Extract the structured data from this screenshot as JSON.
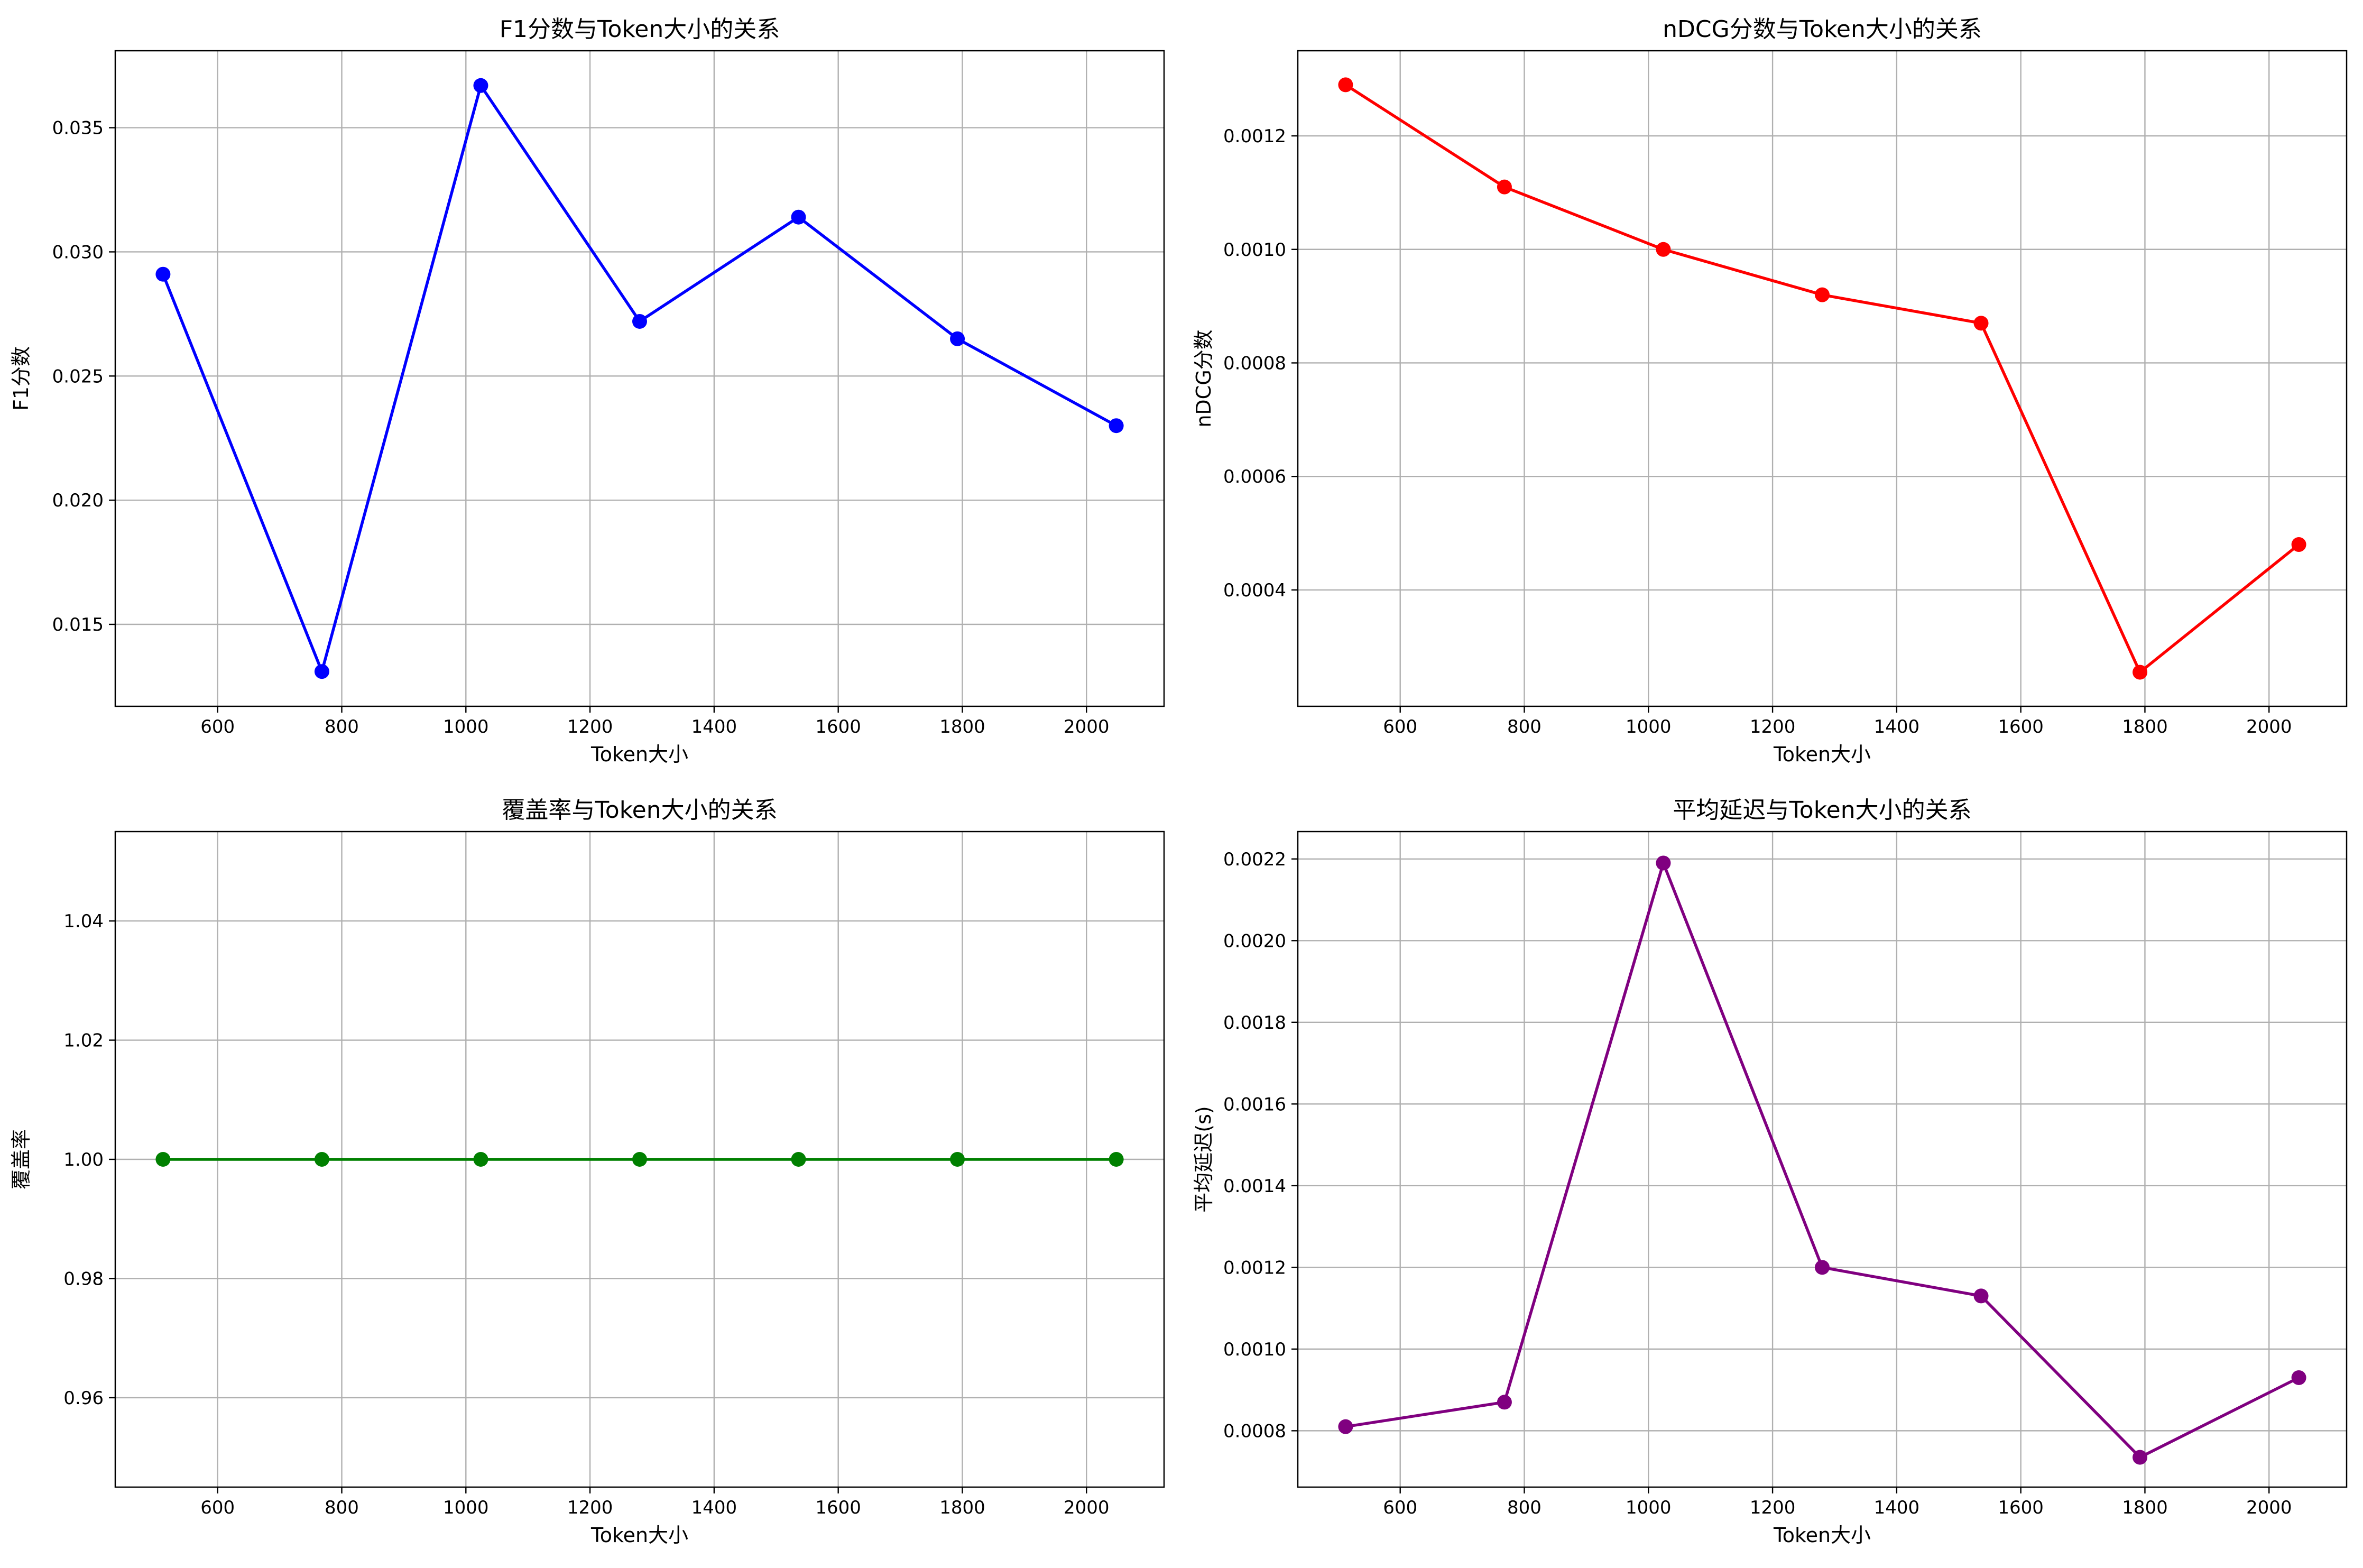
{
  "chart_data": [
    {
      "type": "line",
      "title": "F1分数与Token大小的关系",
      "xlabel": "Token大小",
      "ylabel": "F1分数",
      "x": [
        512,
        768,
        1024,
        1280,
        1536,
        1792,
        2048
      ],
      "series": [
        {
          "values": [
            0.0291,
            0.0131,
            0.0367,
            0.0272,
            0.0314,
            0.0265,
            0.023
          ],
          "color": "#0000ff"
        }
      ],
      "xlim": [
        435,
        2125
      ],
      "ylim": [
        0.0117,
        0.0381
      ],
      "xticks": [
        600,
        800,
        1000,
        1200,
        1400,
        1600,
        1800,
        2000
      ],
      "yticks": [
        0.015,
        0.02,
        0.025,
        0.03,
        0.035
      ],
      "ytick_labels": [
        "0.015",
        "0.020",
        "0.025",
        "0.030",
        "0.035"
      ],
      "grid": true
    },
    {
      "type": "line",
      "title": "nDCG分数与Token大小的关系",
      "xlabel": "Token大小",
      "ylabel": "nDCG分数",
      "x": [
        512,
        768,
        1024,
        1280,
        1536,
        1792,
        2048
      ],
      "series": [
        {
          "values": [
            0.00129,
            0.00111,
            0.001,
            0.00092,
            0.00087,
            0.000255,
            0.00048
          ],
          "color": "#ff0000"
        }
      ],
      "xlim": [
        435,
        2125
      ],
      "ylim": [
        0.000195,
        0.00135
      ],
      "xticks": [
        600,
        800,
        1000,
        1200,
        1400,
        1600,
        1800,
        2000
      ],
      "yticks": [
        0.0004,
        0.0006,
        0.0008,
        0.001,
        0.0012
      ],
      "ytick_labels": [
        "0.0004",
        "0.0006",
        "0.0008",
        "0.0010",
        "0.0012"
      ],
      "grid": true
    },
    {
      "type": "line",
      "title": "覆盖率与Token大小的关系",
      "xlabel": "Token大小",
      "ylabel": "覆盖率",
      "x": [
        512,
        768,
        1024,
        1280,
        1536,
        1792,
        2048
      ],
      "series": [
        {
          "values": [
            1.0,
            1.0,
            1.0,
            1.0,
            1.0,
            1.0,
            1.0
          ],
          "color": "#008000"
        }
      ],
      "xlim": [
        435,
        2125
      ],
      "ylim": [
        0.945,
        1.055
      ],
      "xticks": [
        600,
        800,
        1000,
        1200,
        1400,
        1600,
        1800,
        2000
      ],
      "yticks": [
        0.96,
        0.98,
        1.0,
        1.02,
        1.04
      ],
      "ytick_labels": [
        "0.96",
        "0.98",
        "1.00",
        "1.02",
        "1.04"
      ],
      "grid": true
    },
    {
      "type": "line",
      "title": "平均延迟与Token大小的关系",
      "xlabel": "Token大小",
      "ylabel": "平均延迟(s)",
      "x": [
        512,
        768,
        1024,
        1280,
        1536,
        1792,
        2048
      ],
      "series": [
        {
          "values": [
            0.00081,
            0.00087,
            0.00219,
            0.0012,
            0.00113,
            0.000735,
            0.00093
          ],
          "color": "#800080"
        }
      ],
      "xlim": [
        435,
        2125
      ],
      "ylim": [
        0.000662,
        0.002267
      ],
      "xticks": [
        600,
        800,
        1000,
        1200,
        1400,
        1600,
        1800,
        2000
      ],
      "yticks": [
        0.0008,
        0.001,
        0.0012,
        0.0014,
        0.0016,
        0.0018,
        0.002,
        0.0022
      ],
      "ytick_labels": [
        "0.0008",
        "0.0010",
        "0.0012",
        "0.0014",
        "0.0016",
        "0.0018",
        "0.0020",
        "0.0022"
      ],
      "grid": true
    }
  ]
}
